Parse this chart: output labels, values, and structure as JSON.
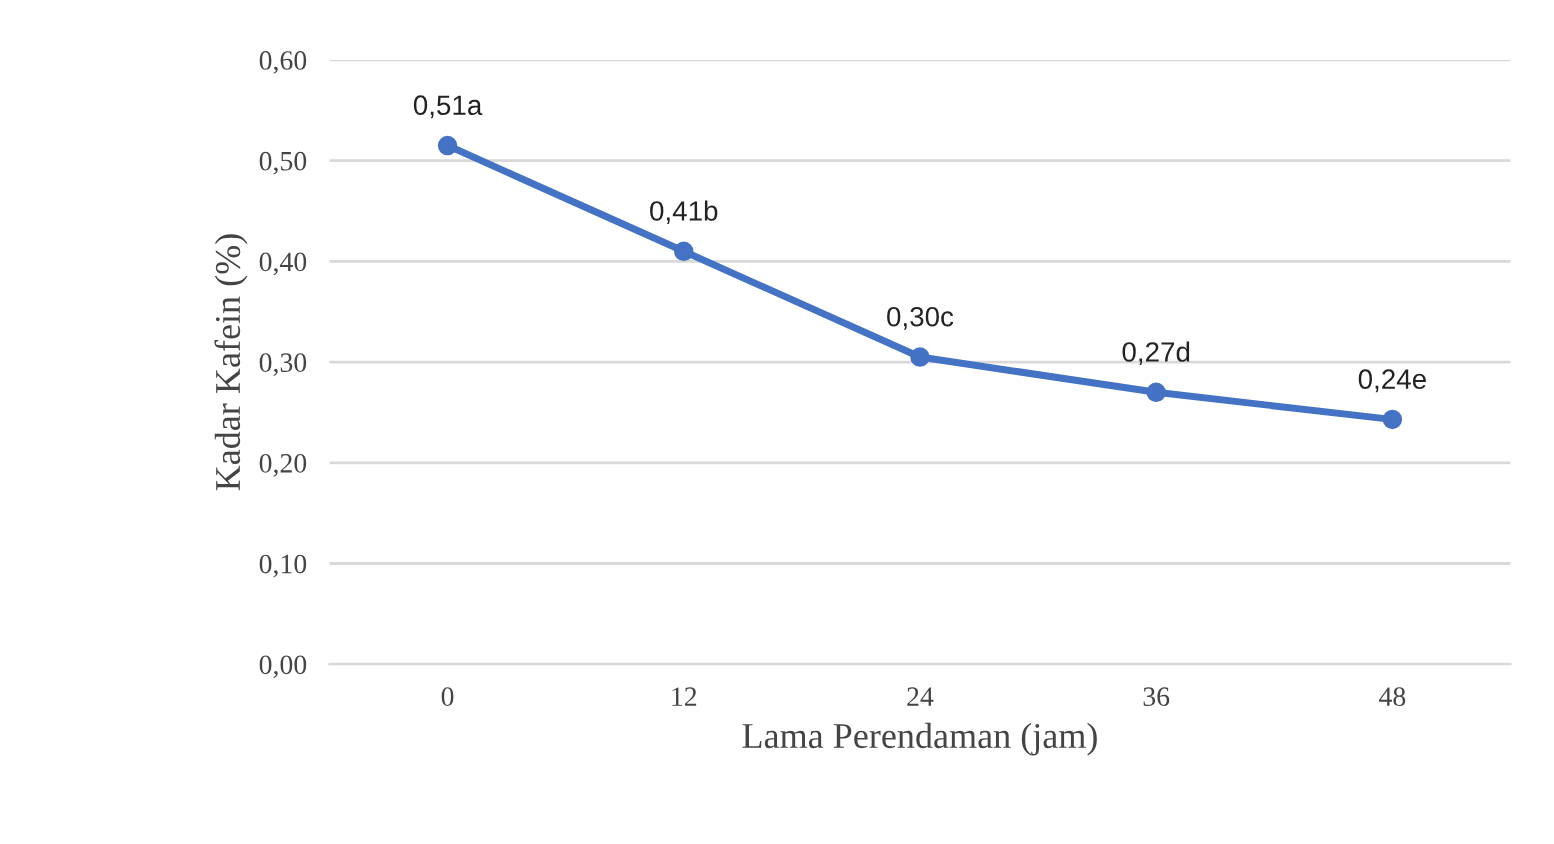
{
  "chart_data": {
    "type": "line",
    "xlabel": "Lama Perendaman (jam)",
    "ylabel": "Kadar Kafein (%)",
    "categories": [
      "0",
      "12",
      "24",
      "36",
      "48"
    ],
    "series": [
      {
        "color": "#4472c4",
        "values": [
          0.515,
          0.41,
          0.305,
          0.27,
          0.243
        ],
        "value_labels": [
          "0,51a",
          "0,41b",
          "0,30c",
          "0,27d",
          "0,24e"
        ]
      }
    ],
    "ylim": [
      0,
      0.6
    ],
    "yticks": [
      {
        "value": 0,
        "label": "0,00"
      },
      {
        "value": 0.1,
        "label": "0,10"
      },
      {
        "value": 0.2,
        "label": "0,20"
      },
      {
        "value": 0.3,
        "label": "0,30"
      },
      {
        "value": 0.4,
        "label": "0,40"
      },
      {
        "value": 0.5,
        "label": "0,50"
      },
      {
        "value": 0.6,
        "label": "0,60"
      }
    ],
    "grid": "y",
    "marker": "circle",
    "line_style": "solid"
  }
}
